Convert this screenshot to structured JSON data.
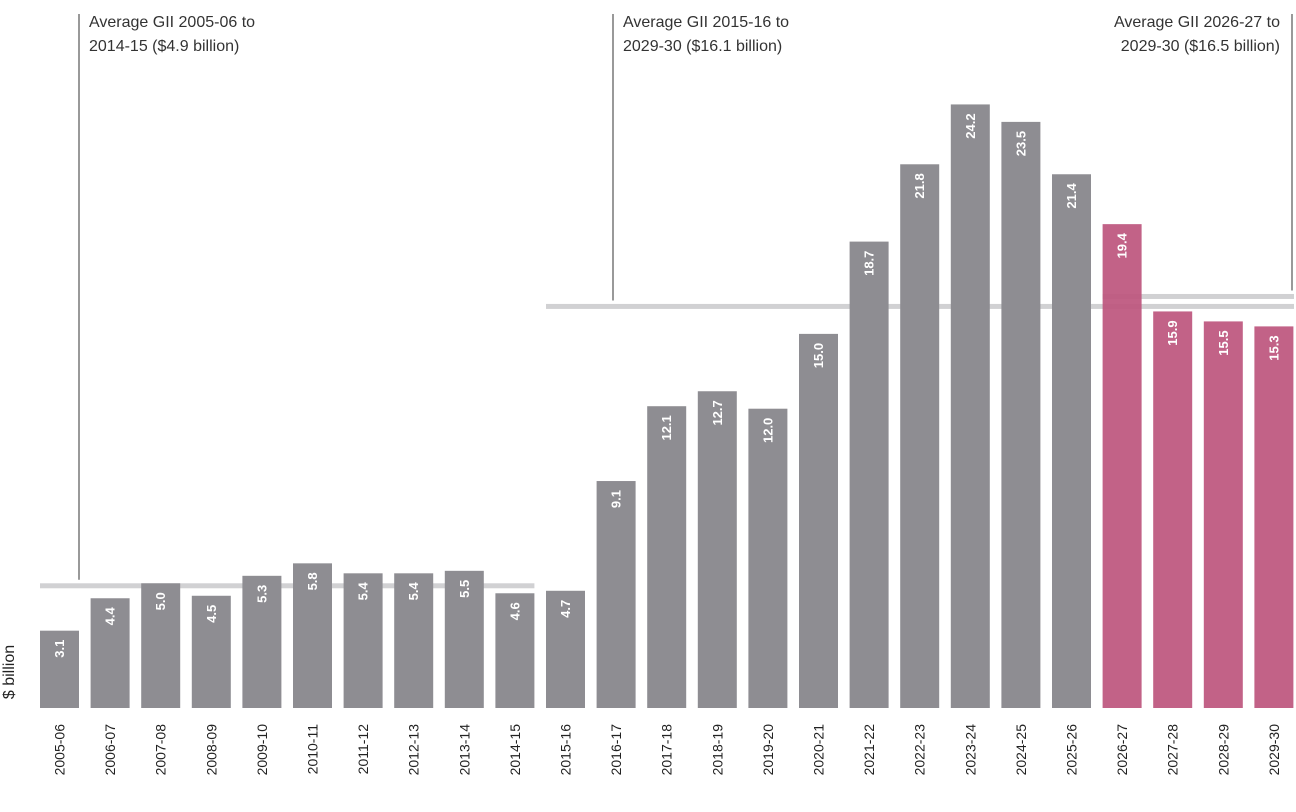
{
  "chart_data": {
    "type": "bar",
    "title": "",
    "xlabel": "",
    "ylabel": "$ billion",
    "ylim": [
      0,
      25.5
    ],
    "grid": false,
    "categories": [
      "2005-06",
      "2006-07",
      "2007-08",
      "2008-09",
      "2009-10",
      "2010-11",
      "2011-12",
      "2012-13",
      "2013-14",
      "2014-15",
      "2015-16",
      "2016-17",
      "2017-18",
      "2018-19",
      "2019-20",
      "2020-21",
      "2021-22",
      "2022-23",
      "2023-24",
      "2024-25",
      "2025-26",
      "2026-27",
      "2027-28",
      "2028-29",
      "2029-30"
    ],
    "values": [
      3.1,
      4.4,
      5.0,
      4.5,
      5.3,
      5.8,
      5.4,
      5.4,
      5.5,
      4.6,
      4.7,
      9.1,
      12.1,
      12.7,
      12.0,
      15.0,
      18.7,
      21.8,
      24.2,
      23.5,
      21.4,
      19.4,
      15.9,
      15.5,
      15.3
    ],
    "value_labels": [
      "3.1",
      "4.4",
      "5.0",
      "4.5",
      "5.3",
      "5.8",
      "5.4",
      "5.4",
      "5.5",
      "4.6",
      "4.7",
      "9.1",
      "12.1",
      "12.7",
      "12.0",
      "15.0",
      "18.7",
      "21.8",
      "24.2",
      "23.5",
      "21.4",
      "19.4",
      "15.9",
      "15.5",
      "15.3"
    ],
    "highlight_from_index": 21,
    "colors": {
      "base": "#8e8d92",
      "highlight": "#bd567e",
      "average_line": "#c9c9cb",
      "annotation_line": "#333333"
    },
    "averages": [
      {
        "line1": "Average GII 2005-06 to",
        "line2": "2014-15 ($4.9 billion)",
        "value": 4.9,
        "from_index": 0,
        "to_index": 9
      },
      {
        "line1": "Average GII 2015-16 to",
        "line2": "2029-30 ($16.1 billion)",
        "value": 16.1,
        "from_index": 10,
        "to_index": 24
      },
      {
        "line1": "Average GII 2026-27 to",
        "line2": "2029-30 ($16.5 billion)",
        "value": 16.5,
        "from_index": 21,
        "to_index": 24
      }
    ]
  }
}
